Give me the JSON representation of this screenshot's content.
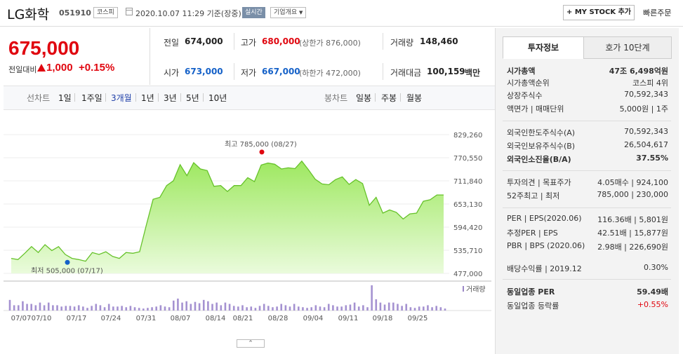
{
  "header": {
    "name": "LG화학",
    "code": "051910",
    "market": "코스피",
    "datetime": "2020.10.07 11:29 기준(장중)",
    "realtime": "실시간",
    "corp_overview": "기업개요",
    "mystock": "+ MY STOCK 추가",
    "quick_order": "빠른주문"
  },
  "price": {
    "current": "675,000",
    "change_label": "전일대비",
    "change": "1,000",
    "change_pct": "+0.15%",
    "prev_label": "전일",
    "prev": "674,000",
    "high_label": "고가",
    "high": "680,000",
    "upper_limit": "(상한가 876,000)",
    "volume_label": "거래량",
    "volume": "148,460",
    "open_label": "시가",
    "open": "673,000",
    "low_label": "저가",
    "low": "667,000",
    "lower_limit": "(하한가 472,000)",
    "amount_label": "거래대금",
    "amount": "100,159",
    "amount_unit": "백만"
  },
  "range_tabs": {
    "line_label": "선차트",
    "periods": [
      "1일",
      "1주일",
      "3개월",
      "1년",
      "3년",
      "5년",
      "10년"
    ],
    "active": "3개월",
    "candle_label": "봉차트",
    "candles": [
      "일봉",
      "주봉",
      "월봉"
    ]
  },
  "chart_data": {
    "type": "area",
    "x_ticks": [
      "07/07",
      "07/10",
      "07/17",
      "07/24",
      "07/31",
      "08/07",
      "08/14",
      "08/21",
      "08/28",
      "09/04",
      "09/11",
      "09/18",
      "09/25"
    ],
    "y_ticks": [
      "829,260",
      "770,550",
      "711,840",
      "653,130",
      "594,420",
      "535,710",
      "477,000"
    ],
    "ylim": [
      477000,
      829260
    ],
    "series": [
      {
        "values": [
          515000,
          512000,
          528000,
          545000,
          530000,
          550000,
          535000,
          545000,
          525000,
          515000,
          512000,
          508000,
          530000,
          525000,
          532000,
          520000,
          515000,
          530000,
          528000,
          532000,
          600000,
          665000,
          670000,
          700000,
          712000,
          753000,
          725000,
          758000,
          742000,
          738000,
          698000,
          700000,
          685000,
          700000,
          700000,
          720000,
          710000,
          752000,
          757000,
          754000,
          742000,
          745000,
          743000,
          762000,
          740000,
          716000,
          704000,
          702000,
          715000,
          722000,
          703000,
          715000,
          705000,
          650000,
          670000,
          630000,
          638000,
          632000,
          615000,
          628000,
          630000,
          660000,
          664000,
          676000,
          676000
        ]
      }
    ],
    "volumes": [
      16,
      8,
      8,
      14,
      10,
      10,
      8,
      12,
      8,
      12,
      8,
      8,
      6,
      7,
      7,
      6,
      8,
      6,
      4,
      7,
      10,
      8,
      5,
      10,
      6,
      6,
      7,
      5,
      7,
      5,
      4,
      3,
      4,
      5,
      6,
      8,
      6,
      5,
      15,
      18,
      12,
      14,
      10,
      13,
      11,
      16,
      14,
      10,
      12,
      8,
      12,
      10,
      7,
      6,
      8,
      5,
      6,
      4,
      7,
      10,
      7,
      5,
      6,
      10,
      8,
      6,
      10,
      6,
      5,
      4,
      5,
      8,
      6,
      5,
      10,
      8,
      6,
      6,
      8,
      9,
      12,
      6,
      8,
      5,
      38,
      17,
      12,
      9,
      12,
      12,
      10,
      7,
      10,
      5,
      4,
      6,
      6,
      8,
      5,
      7,
      5,
      3
    ],
    "annotations": {
      "high": "최고 785,000 (08/27)",
      "low": "최저 505,000 (07/17)"
    },
    "volume_label": "거래량"
  },
  "right_panel": {
    "tabs": [
      "투자정보",
      "호가 10단계"
    ],
    "rows": [
      {
        "k": "시가총액",
        "v": "47조 6,498억원",
        "bold": true
      },
      {
        "k": "시가총액순위",
        "v": "코스피 4위"
      },
      {
        "k": "상장주식수",
        "v": "70,592,343"
      },
      {
        "k": "액면가 | 매매단위",
        "v": "5,000원 | 1주"
      },
      {
        "k": "외국인한도주식수(A)",
        "v": "70,592,343"
      },
      {
        "k": "외국인보유주식수(B)",
        "v": "26,504,617"
      },
      {
        "k": "외국인소진율(B/A)",
        "v": "37.55%",
        "bold": true
      },
      {
        "k": "투자의견 | 목표주가",
        "v": "4.05매수 | 924,100"
      },
      {
        "k": "52주최고 | 최저",
        "v": "785,000 | 230,000"
      },
      {
        "k": "PER | EPS(2020.06)",
        "v": "116.36배 | 5,801원"
      },
      {
        "k": "추정PER | EPS",
        "v": "42.51배 | 15,877원"
      },
      {
        "k": "PBR | BPS (2020.06)",
        "v": "2.98배 | 226,690원"
      },
      {
        "k": "배당수익률 | 2019.12",
        "v": "0.30%"
      },
      {
        "k": "동일업종 PER",
        "v": "59.49배",
        "bold": true
      },
      {
        "k": "동일업종 등락률",
        "v": "+0.55%"
      }
    ]
  },
  "collapse": "⌃"
}
